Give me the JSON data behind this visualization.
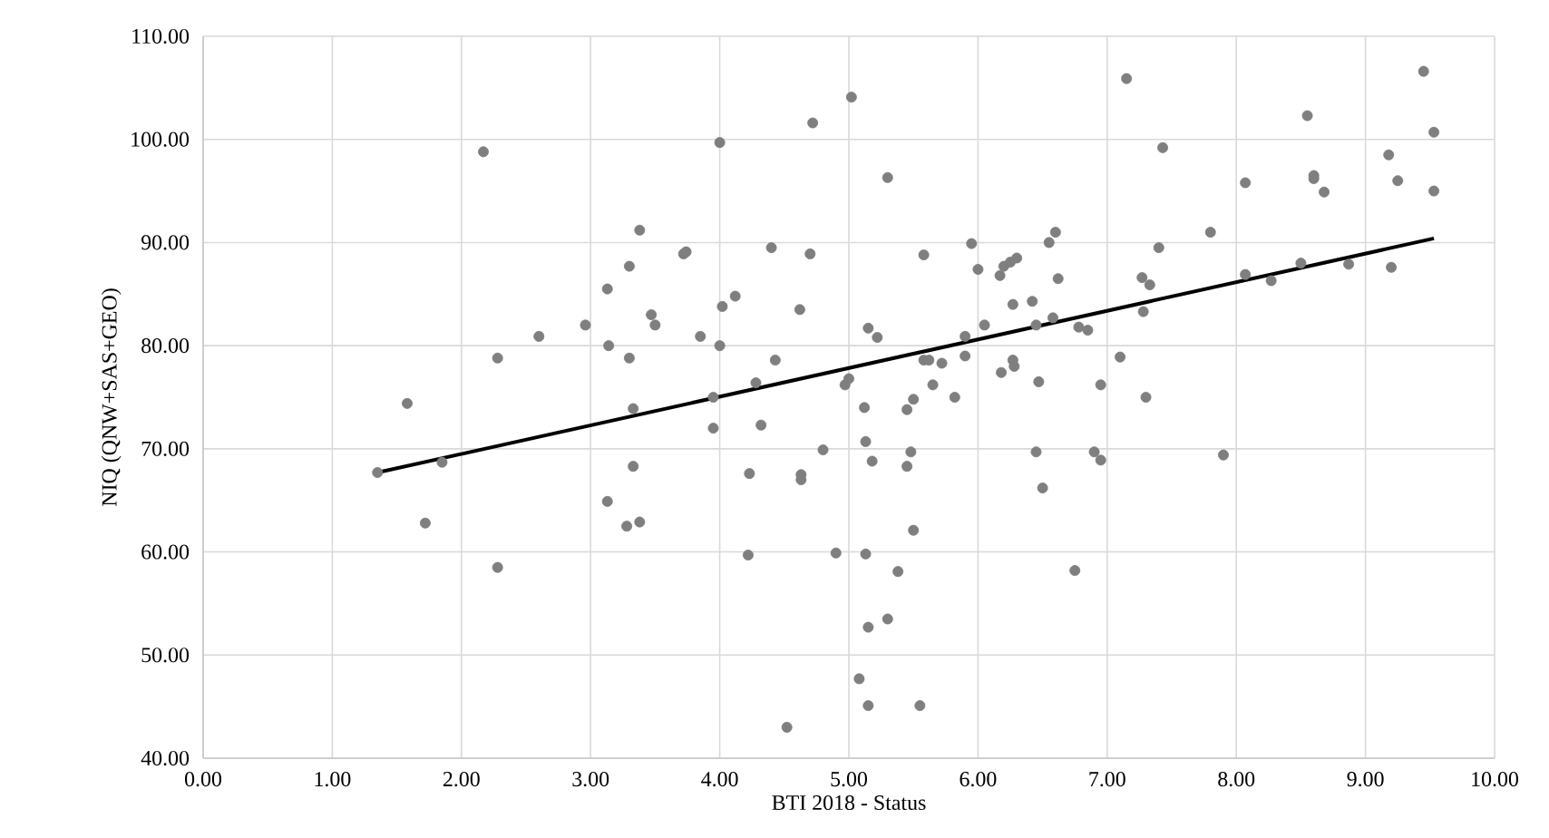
{
  "chart_data": {
    "type": "scatter",
    "xlabel": "BTI 2018 - Status",
    "ylabel": "NIQ (QNW+SAS+GEO)",
    "xlim": [
      0,
      10
    ],
    "ylim": [
      40,
      110
    ],
    "xticks": [
      {
        "value": 0,
        "label": "0.00"
      },
      {
        "value": 1,
        "label": "1.00"
      },
      {
        "value": 2,
        "label": "2.00"
      },
      {
        "value": 3,
        "label": "3.00"
      },
      {
        "value": 4,
        "label": "4.00"
      },
      {
        "value": 5,
        "label": "5.00"
      },
      {
        "value": 6,
        "label": "6.00"
      },
      {
        "value": 7,
        "label": "7.00"
      },
      {
        "value": 8,
        "label": "8.00"
      },
      {
        "value": 9,
        "label": "9.00"
      },
      {
        "value": 10,
        "label": "10.00"
      }
    ],
    "yticks": [
      {
        "value": 40,
        "label": "40.00"
      },
      {
        "value": 50,
        "label": "50.00"
      },
      {
        "value": 60,
        "label": "60.00"
      },
      {
        "value": 70,
        "label": "70.00"
      },
      {
        "value": 80,
        "label": "80.00"
      },
      {
        "value": 90,
        "label": "90.00"
      },
      {
        "value": 100,
        "label": "100.00"
      },
      {
        "value": 110,
        "label": "110.00"
      }
    ],
    "grid": true,
    "series": [
      {
        "marker": "circle",
        "color": "#7f7f7f",
        "x": [
          1.35,
          1.58,
          1.72,
          1.85,
          2.17,
          2.28,
          2.28,
          2.6,
          2.96,
          3.13,
          3.14,
          3.13,
          3.3,
          3.3,
          3.28,
          3.33,
          3.33,
          3.38,
          3.38,
          3.47,
          3.5,
          3.72,
          3.74,
          3.85,
          3.95,
          3.95,
          4.0,
          4.0,
          4.02,
          4.12,
          4.22,
          4.23,
          4.28,
          4.32,
          4.4,
          4.43,
          4.52,
          4.62,
          4.63,
          4.63,
          4.7,
          4.72,
          4.8,
          4.9,
          4.97,
          5.0,
          5.02,
          5.08,
          5.12,
          5.13,
          5.13,
          5.15,
          5.15,
          5.15,
          5.18,
          5.22,
          5.3,
          5.3,
          5.38,
          5.45,
          5.45,
          5.48,
          5.5,
          5.5,
          5.55,
          5.58,
          5.58,
          5.62,
          5.65,
          5.72,
          5.82,
          5.9,
          5.9,
          5.95,
          6.0,
          6.05,
          6.18,
          6.17,
          6.2,
          6.25,
          6.27,
          6.27,
          6.28,
          6.3,
          6.42,
          6.45,
          6.45,
          6.47,
          6.5,
          6.55,
          6.58,
          6.6,
          6.62,
          6.75,
          6.78,
          6.85,
          6.9,
          6.95,
          6.95,
          7.1,
          7.15,
          7.27,
          7.28,
          7.3,
          7.33,
          7.4,
          7.43,
          7.8,
          7.9,
          8.07,
          8.07,
          8.27,
          8.5,
          8.55,
          8.6,
          8.6,
          8.68,
          8.87,
          9.18,
          9.2,
          9.25,
          9.45,
          9.53,
          9.53
        ],
        "values": [
          67.7,
          74.4,
          62.8,
          68.7,
          98.8,
          78.8,
          58.5,
          80.9,
          82.0,
          85.5,
          80.0,
          64.9,
          87.7,
          78.8,
          62.5,
          73.9,
          68.3,
          91.2,
          62.9,
          83.0,
          82.0,
          88.9,
          89.1,
          80.9,
          72.0,
          75.0,
          99.7,
          80.0,
          83.8,
          84.8,
          59.7,
          67.6,
          76.4,
          72.3,
          89.5,
          78.6,
          43.0,
          83.5,
          67.5,
          67.0,
          88.9,
          101.6,
          69.9,
          59.9,
          76.2,
          76.8,
          104.1,
          47.7,
          74.0,
          70.7,
          59.8,
          52.7,
          45.1,
          81.7,
          68.8,
          80.8,
          96.3,
          53.5,
          58.1,
          73.8,
          68.3,
          69.7,
          74.8,
          62.1,
          45.1,
          88.8,
          78.6,
          78.6,
          76.2,
          78.3,
          75.0,
          80.9,
          79.0,
          89.9,
          87.4,
          82.0,
          77.4,
          86.8,
          87.7,
          88.1,
          84.0,
          78.6,
          78.0,
          88.5,
          84.3,
          82.0,
          69.7,
          76.5,
          66.2,
          90.0,
          82.7,
          91.0,
          86.5,
          58.2,
          81.8,
          81.5,
          69.7,
          68.9,
          76.2,
          78.9,
          105.9,
          86.6,
          83.3,
          75.0,
          85.9,
          89.5,
          99.2,
          91.0,
          69.4,
          95.8,
          86.9,
          86.3,
          88.0,
          102.3,
          96.5,
          96.2,
          94.9,
          87.9,
          98.5,
          87.6,
          96.0,
          106.6,
          100.7,
          95.0
        ]
      },
      {
        "type": "line",
        "marker": "none",
        "color": "#000000",
        "x": [
          1.35,
          9.53
        ],
        "values": [
          67.7,
          90.4
        ]
      }
    ]
  }
}
